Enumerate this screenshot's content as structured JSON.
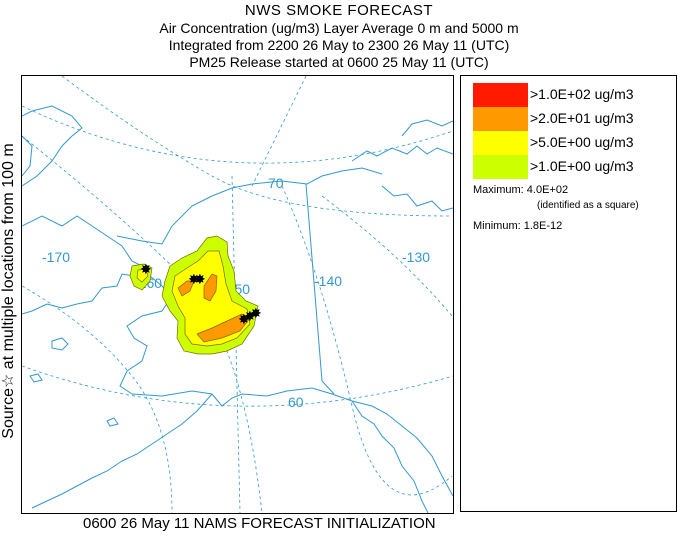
{
  "header": {
    "title": "NWS SMOKE FORECAST",
    "line2": "Air Concentration (ug/m3) Layer Average    0 m and  5000 m",
    "line3": "Integrated from 2200 26 May to 2300 26 May 11 (UTC)",
    "line4": "PM25 Release started at 0600 25 May 11 (UTC)"
  },
  "side_label": "Source☆ at multiple locations   from   100 m",
  "footer": "0600 26 May 11 NAMS FORECAST INITIALIZATION",
  "map": {
    "graticule_labels": [
      "-170",
      "-160",
      "-150",
      "-140",
      "-130",
      "70",
      "60"
    ]
  },
  "legend": {
    "items": [
      {
        "label": ">1.0E+02 ug/m3",
        "color": "#ff1a00"
      },
      {
        "label": ">2.0E+01 ug/m3",
        "color": "#ff9900"
      },
      {
        "label": ">5.0E+00 ug/m3",
        "color": "#ffff00"
      },
      {
        "label": ">1.0E+00 ug/m3",
        "color": "#ccff00"
      }
    ],
    "maximum": "Maximum: 4.0E+02",
    "maximum_note": "(identified as a square)",
    "minimum": "Minimum: 1.8E-12"
  },
  "colors": {
    "coast": "#3399cc",
    "graticule": "#3399cc",
    "contour": "#806600"
  }
}
